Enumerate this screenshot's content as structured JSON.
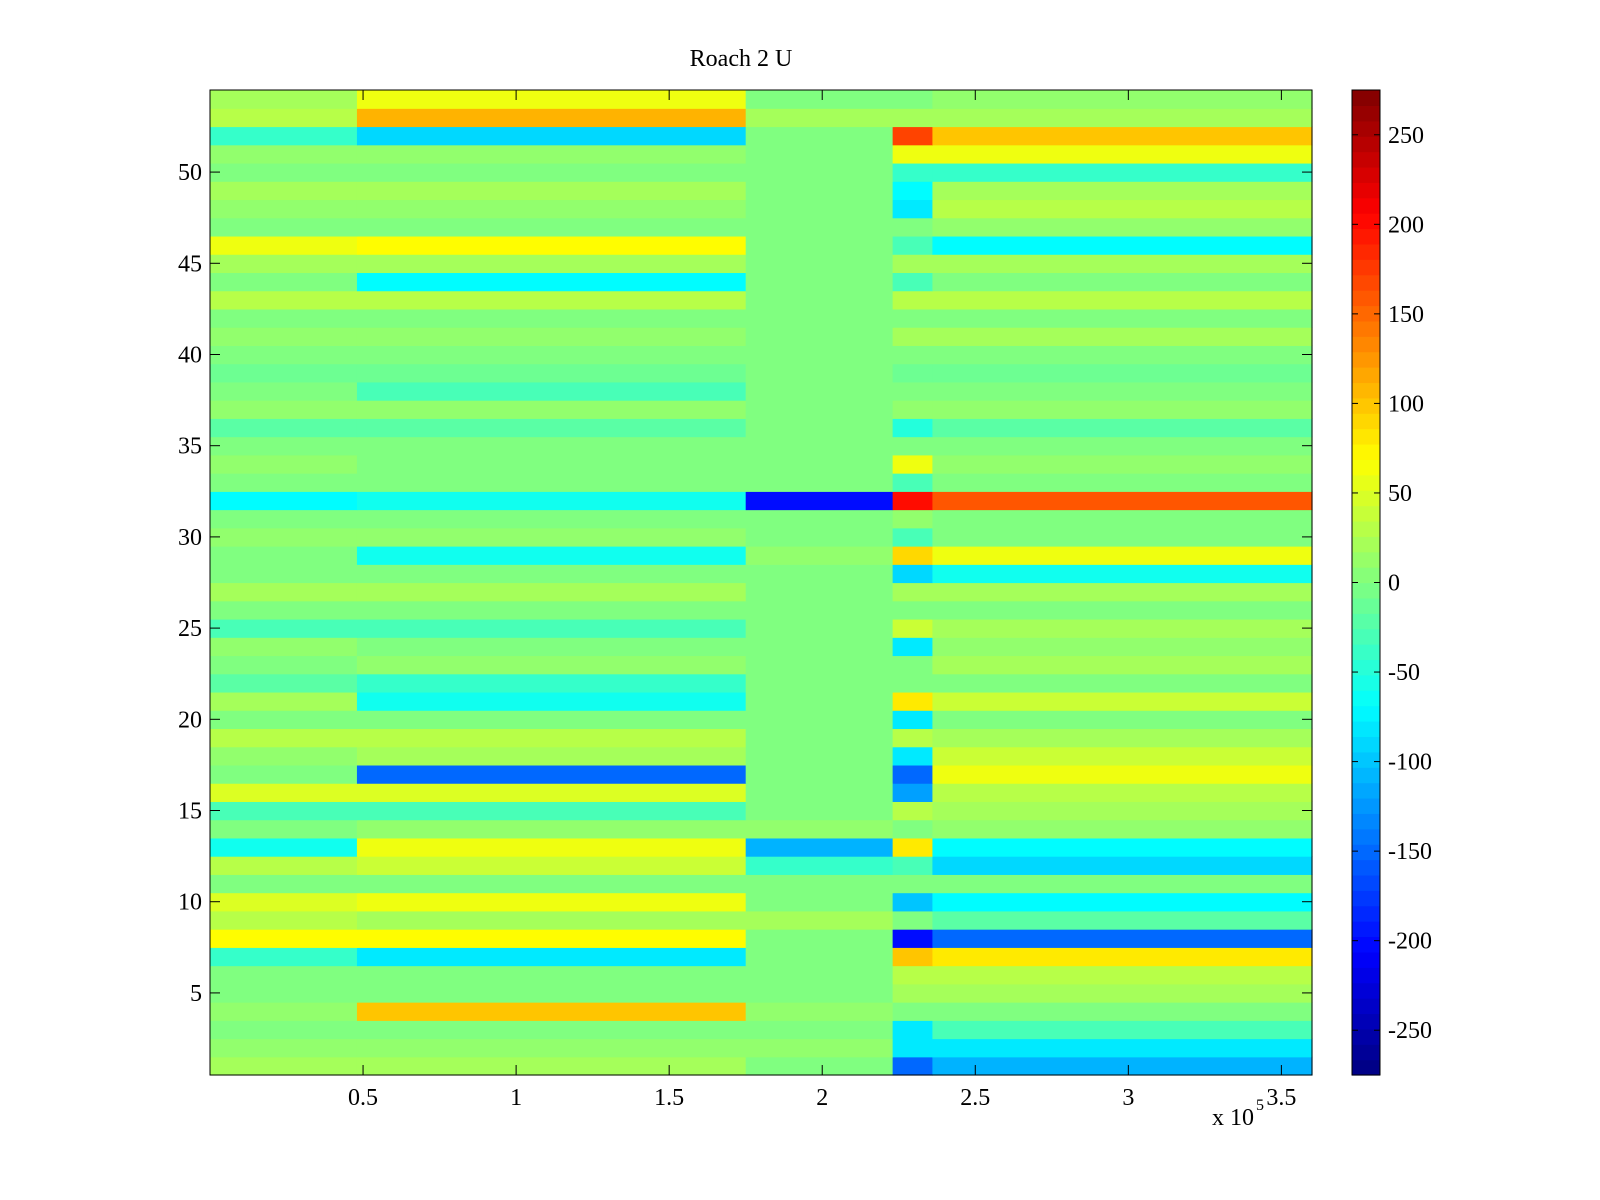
{
  "chart_data": {
    "type": "heatmap",
    "title": "Roach 2 U",
    "xlabel": "",
    "ylabel": "",
    "x_multiplier_label": "x 10",
    "x_multiplier_exponent": "5",
    "xlim": [
      0,
      3.6
    ],
    "ylim": [
      0.5,
      54.5
    ],
    "xticks": [
      0.5,
      1,
      1.5,
      2,
      2.5,
      3,
      3.5
    ],
    "xtick_labels": [
      "0.5",
      "1",
      "1.5",
      "2",
      "2.5",
      "3",
      "3.5"
    ],
    "yticks": [
      5,
      10,
      15,
      20,
      25,
      30,
      35,
      40,
      45,
      50
    ],
    "ytick_labels": [
      "5",
      "10",
      "15",
      "20",
      "25",
      "30",
      "35",
      "40",
      "45",
      "50"
    ],
    "colormap": "jet",
    "clim": [
      -275,
      275
    ],
    "colorbar_ticks": [
      250,
      200,
      150,
      100,
      50,
      0,
      -50,
      -100,
      -150,
      -200,
      -250
    ],
    "colorbar_tick_labels": [
      "250",
      "200",
      "150",
      "100",
      "50",
      "0",
      "-50",
      "-100",
      "-150",
      "-200",
      "-250"
    ],
    "n_rows": 54,
    "segments_x_breaks": [
      0,
      0.48,
      1.75,
      2.23,
      2.36,
      3.6
    ],
    "row_segment_values": [
      {
        "row": 1,
        "values": [
          20,
          20,
          0,
          -150,
          -110
        ]
      },
      {
        "row": 2,
        "values": [
          10,
          10,
          10,
          -80,
          -80
        ]
      },
      {
        "row": 3,
        "values": [
          0,
          0,
          0,
          -80,
          -30
        ]
      },
      {
        "row": 4,
        "values": [
          10,
          100,
          10,
          0,
          0
        ]
      },
      {
        "row": 5,
        "values": [
          0,
          0,
          0,
          20,
          20
        ]
      },
      {
        "row": 6,
        "values": [
          0,
          0,
          0,
          30,
          30
        ]
      },
      {
        "row": 7,
        "values": [
          -40,
          -80,
          0,
          100,
          80
        ]
      },
      {
        "row": 8,
        "values": [
          70,
          70,
          0,
          -200,
          -150
        ]
      },
      {
        "row": 9,
        "values": [
          30,
          20,
          20,
          0,
          -20
        ]
      },
      {
        "row": 10,
        "values": [
          50,
          60,
          0,
          -100,
          -70
        ]
      },
      {
        "row": 11,
        "values": [
          0,
          0,
          0,
          0,
          0
        ]
      },
      {
        "row": 12,
        "values": [
          30,
          40,
          -40,
          -30,
          -90
        ]
      },
      {
        "row": 13,
        "values": [
          -60,
          60,
          -110,
          80,
          -70
        ]
      },
      {
        "row": 14,
        "values": [
          0,
          10,
          10,
          0,
          10
        ]
      },
      {
        "row": 15,
        "values": [
          -30,
          -30,
          0,
          30,
          20
        ]
      },
      {
        "row": 16,
        "values": [
          50,
          50,
          0,
          -120,
          30
        ]
      },
      {
        "row": 17,
        "values": [
          0,
          -150,
          0,
          -150,
          60
        ]
      },
      {
        "row": 18,
        "values": [
          10,
          20,
          0,
          -80,
          40
        ]
      },
      {
        "row": 19,
        "values": [
          30,
          30,
          0,
          30,
          20
        ]
      },
      {
        "row": 20,
        "values": [
          0,
          0,
          0,
          -80,
          0
        ]
      },
      {
        "row": 21,
        "values": [
          20,
          -60,
          0,
          80,
          40
        ]
      },
      {
        "row": 22,
        "values": [
          -20,
          -40,
          0,
          0,
          0
        ]
      },
      {
        "row": 23,
        "values": [
          0,
          10,
          0,
          0,
          20
        ]
      },
      {
        "row": 24,
        "values": [
          10,
          0,
          0,
          -80,
          10
        ]
      },
      {
        "row": 25,
        "values": [
          -30,
          -30,
          0,
          40,
          20
        ]
      },
      {
        "row": 26,
        "values": [
          0,
          0,
          0,
          0,
          0
        ]
      },
      {
        "row": 27,
        "values": [
          20,
          20,
          0,
          20,
          20
        ]
      },
      {
        "row": 28,
        "values": [
          0,
          0,
          0,
          -90,
          -60
        ]
      },
      {
        "row": 29,
        "values": [
          0,
          -60,
          10,
          90,
          60
        ]
      },
      {
        "row": 30,
        "values": [
          10,
          10,
          0,
          -30,
          0
        ]
      },
      {
        "row": 31,
        "values": [
          0,
          0,
          0,
          10,
          0
        ]
      },
      {
        "row": 32,
        "values": [
          -70,
          -60,
          -200,
          200,
          160
        ]
      },
      {
        "row": 33,
        "values": [
          0,
          0,
          0,
          -30,
          0
        ]
      },
      {
        "row": 34,
        "values": [
          10,
          0,
          0,
          60,
          10
        ]
      },
      {
        "row": 35,
        "values": [
          0,
          0,
          0,
          0,
          0
        ]
      },
      {
        "row": 36,
        "values": [
          -20,
          -20,
          0,
          -50,
          -20
        ]
      },
      {
        "row": 37,
        "values": [
          10,
          10,
          0,
          10,
          10
        ]
      },
      {
        "row": 38,
        "values": [
          0,
          -30,
          0,
          0,
          0
        ]
      },
      {
        "row": 39,
        "values": [
          -10,
          -10,
          0,
          -10,
          -10
        ]
      },
      {
        "row": 40,
        "values": [
          0,
          0,
          0,
          0,
          0
        ]
      },
      {
        "row": 41,
        "values": [
          10,
          10,
          0,
          20,
          20
        ]
      },
      {
        "row": 42,
        "values": [
          0,
          0,
          0,
          0,
          0
        ]
      },
      {
        "row": 43,
        "values": [
          30,
          30,
          0,
          30,
          30
        ]
      },
      {
        "row": 44,
        "values": [
          0,
          -70,
          0,
          -30,
          0
        ]
      },
      {
        "row": 45,
        "values": [
          20,
          20,
          0,
          20,
          20
        ]
      },
      {
        "row": 46,
        "values": [
          60,
          70,
          0,
          -30,
          -70
        ]
      },
      {
        "row": 47,
        "values": [
          0,
          0,
          0,
          0,
          10
        ]
      },
      {
        "row": 48,
        "values": [
          10,
          10,
          0,
          -80,
          30
        ]
      },
      {
        "row": 49,
        "values": [
          20,
          20,
          0,
          -70,
          20
        ]
      },
      {
        "row": 50,
        "values": [
          0,
          0,
          0,
          -40,
          -40
        ]
      },
      {
        "row": 51,
        "values": [
          10,
          10,
          0,
          60,
          60
        ]
      },
      {
        "row": 52,
        "values": [
          -40,
          -90,
          0,
          170,
          100
        ]
      },
      {
        "row": 53,
        "values": [
          30,
          110,
          20,
          20,
          20
        ]
      },
      {
        "row": 54,
        "values": [
          20,
          60,
          0,
          0,
          10
        ]
      }
    ]
  }
}
